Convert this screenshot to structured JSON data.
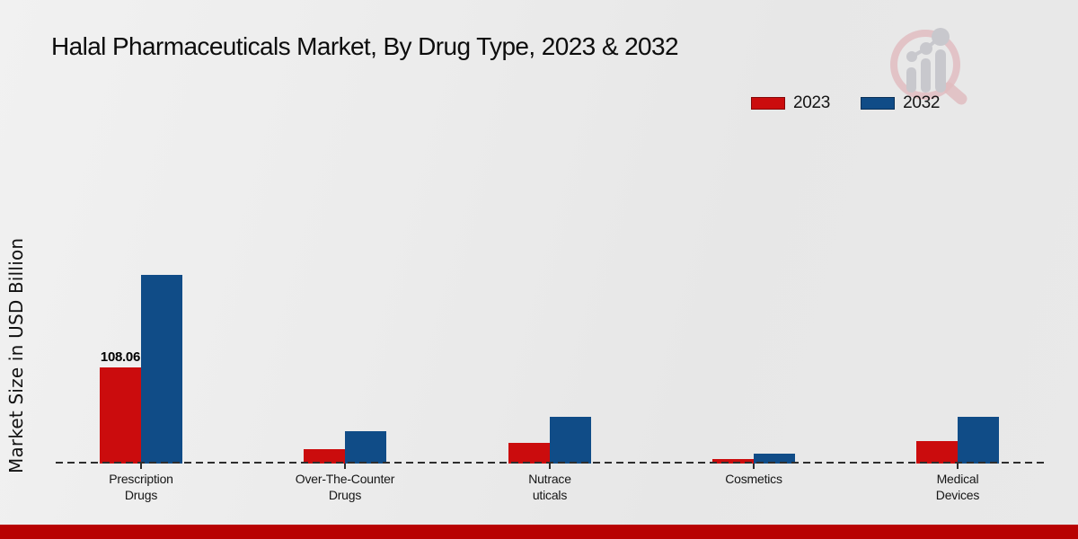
{
  "title": "Halal Pharmaceuticals Market, By Drug Type, 2023 & 2032",
  "legend": {
    "items": [
      {
        "label": "2023",
        "color": "#cb0c0d"
      },
      {
        "label": "2032",
        "color": "#104c87"
      }
    ]
  },
  "watermark": {
    "name": "market-research-magnifier-logo"
  },
  "colors": {
    "series_2023": "#cb0c0d",
    "series_2032": "#104c87",
    "footer_bar": "#b80202",
    "dashed_axis": "#2e2e2e",
    "background": "#ebebeb"
  },
  "chart_data": {
    "type": "bar",
    "title": "Halal Pharmaceuticals Market, By Drug Type, 2023 & 2032",
    "ylabel": "Market Size in USD Billion",
    "xlabel": "",
    "categories": [
      "Prescription Drugs",
      "Over-The-Counter Drugs",
      "Nutraceuticals",
      "Cosmetics",
      "Medical Devices"
    ],
    "category_label_lines": [
      [
        "Prescription",
        "Drugs"
      ],
      [
        "Over-The-Counter",
        "Drugs"
      ],
      [
        "Nutrace",
        "uticals"
      ],
      [
        "Cosmetics"
      ],
      [
        "Medical",
        "Devices"
      ]
    ],
    "series": [
      {
        "name": "2023",
        "color": "#cb0c0d",
        "values": [
          108.06,
          16.2,
          23.2,
          5.1,
          25.3
        ]
      },
      {
        "name": "2032",
        "color": "#104c87",
        "values": [
          212.0,
          36.5,
          52.5,
          11.1,
          52.5
        ]
      }
    ],
    "data_labels": [
      {
        "series": "2023",
        "category": "Prescription Drugs",
        "text": "108.06"
      }
    ],
    "ylim": [
      0,
      230
    ],
    "grid": false,
    "legend_position": "top-right",
    "baseline_style": "dashed",
    "note_only_labeled_value": "108.06"
  }
}
